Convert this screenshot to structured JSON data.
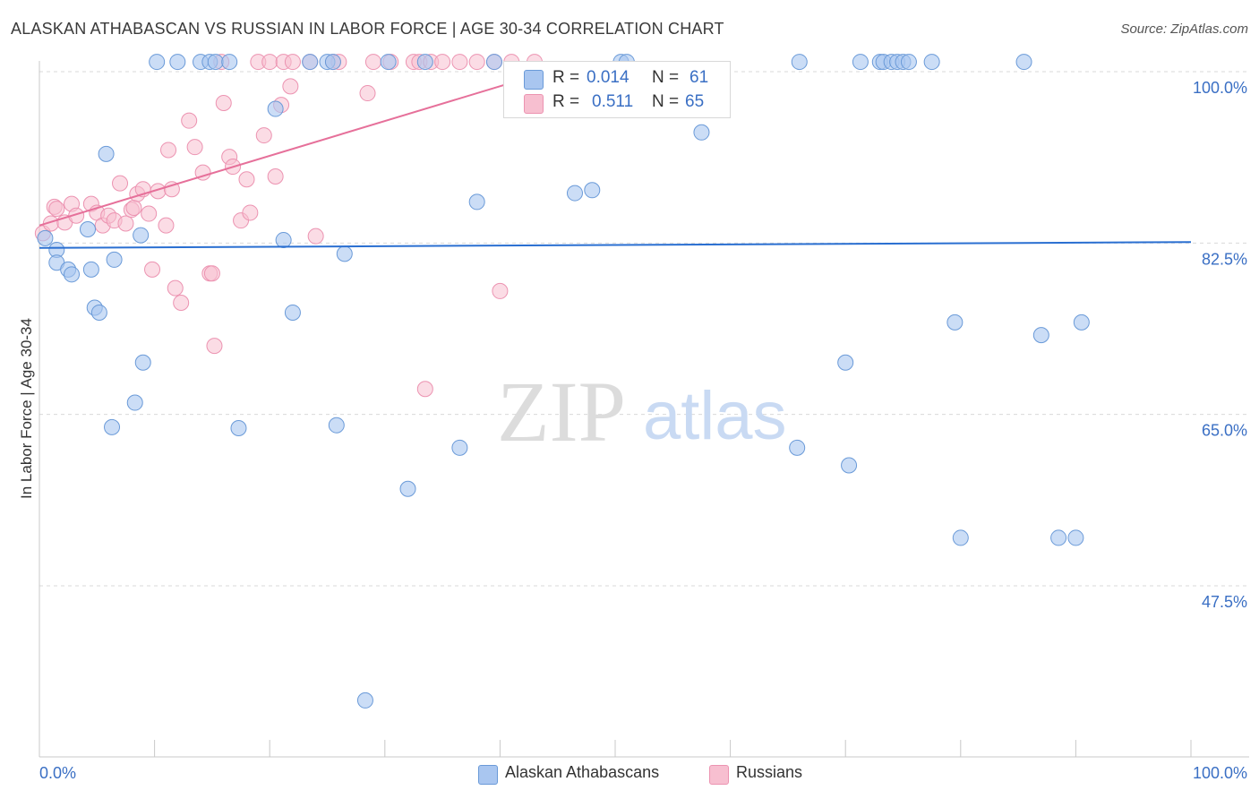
{
  "title": "ALASKAN ATHABASCAN VS RUSSIAN IN LABOR FORCE | AGE 30-34 CORRELATION CHART",
  "source": "Source: ZipAtlas.com",
  "watermark": {
    "zip": "ZIP",
    "atlas": "atlas"
  },
  "legend": {
    "series1": {
      "r_label": "R =",
      "r_value": "0.014",
      "n_label": "N =",
      "n_value": "61"
    },
    "series2": {
      "r_label": "R =",
      "r_value": "0.511",
      "n_label": "N =",
      "n_value": "65"
    }
  },
  "colors": {
    "blue_fill": "#a9c6f0",
    "blue_stroke": "#6a9ad8",
    "blue_line": "#2a6fd1",
    "pink_fill": "#f7bfd0",
    "pink_stroke": "#ec93b1",
    "pink_line": "#e6709a",
    "axis_text": "#3a6fc4",
    "grid": "#d9d9d9"
  },
  "chart_data": {
    "type": "scatter",
    "title": "ALASKAN ATHABASCAN VS RUSSIAN IN LABOR FORCE | AGE 30-34 CORRELATION CHART",
    "xlabel": "",
    "ylabel": "In Labor Force | Age 30-34",
    "x_tick_labels": [
      "0.0%",
      "100.0%"
    ],
    "y_tick_labels": [
      "100.0%",
      "82.5%",
      "65.0%",
      "47.5%"
    ],
    "y_ticks": [
      100,
      82.5,
      65,
      47.5
    ],
    "xlim": [
      0,
      100
    ],
    "ylim": [
      30,
      101.5
    ],
    "series": [
      {
        "name": "Alaskan Athabascans",
        "color": "blue",
        "trend": {
          "x": [
            0,
            100
          ],
          "y": [
            82.0,
            82.6
          ]
        },
        "points": [
          [
            0.5,
            83.0
          ],
          [
            1.5,
            81.8
          ],
          [
            1.5,
            80.5
          ],
          [
            2.5,
            79.8
          ],
          [
            2.8,
            79.3
          ],
          [
            4.2,
            83.9
          ],
          [
            4.5,
            79.8
          ],
          [
            4.8,
            75.9
          ],
          [
            5.2,
            75.4
          ],
          [
            5.8,
            91.6
          ],
          [
            6.3,
            63.7
          ],
          [
            6.5,
            80.8
          ],
          [
            8.3,
            66.2
          ],
          [
            8.8,
            83.3
          ],
          [
            9.0,
            70.3
          ],
          [
            10.2,
            101
          ],
          [
            12.0,
            101
          ],
          [
            14.0,
            101
          ],
          [
            14.8,
            101
          ],
          [
            15.3,
            101
          ],
          [
            16.5,
            101
          ],
          [
            17.3,
            63.6
          ],
          [
            20.5,
            96.2
          ],
          [
            21.2,
            82.8
          ],
          [
            22.0,
            75.4
          ],
          [
            23.5,
            101
          ],
          [
            25.0,
            101
          ],
          [
            25.5,
            101
          ],
          [
            25.8,
            63.9
          ],
          [
            26.5,
            81.4
          ],
          [
            28.3,
            35.8
          ],
          [
            30.3,
            101
          ],
          [
            32.0,
            57.4
          ],
          [
            33.5,
            101
          ],
          [
            36.5,
            61.6
          ],
          [
            38.0,
            86.7
          ],
          [
            39.5,
            101
          ],
          [
            46.5,
            87.6
          ],
          [
            48.0,
            87.9
          ],
          [
            50.5,
            101
          ],
          [
            51.0,
            101
          ],
          [
            57.5,
            93.8
          ],
          [
            65.8,
            61.6
          ],
          [
            66.0,
            101
          ],
          [
            70.0,
            70.3
          ],
          [
            70.3,
            59.8
          ],
          [
            71.3,
            101
          ],
          [
            73.0,
            101
          ],
          [
            73.3,
            101
          ],
          [
            74.0,
            101
          ],
          [
            74.5,
            101
          ],
          [
            75.0,
            101
          ],
          [
            75.5,
            101
          ],
          [
            77.5,
            101
          ],
          [
            79.5,
            74.4
          ],
          [
            80.0,
            52.4
          ],
          [
            85.5,
            101
          ],
          [
            87.0,
            73.1
          ],
          [
            88.5,
            52.4
          ],
          [
            90.0,
            52.4
          ],
          [
            90.5,
            74.4
          ]
        ]
      },
      {
        "name": "Russians",
        "color": "pink",
        "trend": {
          "x": [
            0,
            47
          ],
          "y": [
            84.3,
            101
          ]
        },
        "points": [
          [
            0.3,
            83.5
          ],
          [
            1.0,
            84.5
          ],
          [
            1.3,
            86.2
          ],
          [
            1.5,
            86.0
          ],
          [
            2.2,
            84.6
          ],
          [
            2.8,
            86.5
          ],
          [
            3.2,
            85.3
          ],
          [
            4.5,
            86.5
          ],
          [
            5.0,
            85.6
          ],
          [
            5.5,
            84.3
          ],
          [
            6.0,
            85.3
          ],
          [
            6.5,
            84.8
          ],
          [
            7.0,
            88.6
          ],
          [
            7.5,
            84.5
          ],
          [
            8.0,
            85.9
          ],
          [
            8.2,
            86.1
          ],
          [
            8.5,
            87.5
          ],
          [
            9.0,
            88.0
          ],
          [
            9.5,
            85.5
          ],
          [
            9.8,
            79.8
          ],
          [
            10.3,
            87.8
          ],
          [
            11.0,
            84.3
          ],
          [
            11.2,
            92.0
          ],
          [
            11.5,
            88.0
          ],
          [
            11.8,
            77.9
          ],
          [
            12.3,
            76.4
          ],
          [
            13.0,
            95.0
          ],
          [
            13.5,
            92.3
          ],
          [
            14.2,
            89.7
          ],
          [
            14.8,
            79.4
          ],
          [
            15.0,
            79.4
          ],
          [
            15.2,
            72.0
          ],
          [
            15.8,
            101
          ],
          [
            16.0,
            96.8
          ],
          [
            16.5,
            91.3
          ],
          [
            16.8,
            90.3
          ],
          [
            17.5,
            84.8
          ],
          [
            18.0,
            89.0
          ],
          [
            18.3,
            85.6
          ],
          [
            19.0,
            101
          ],
          [
            19.5,
            93.5
          ],
          [
            20.0,
            101
          ],
          [
            20.5,
            89.3
          ],
          [
            21.0,
            96.6
          ],
          [
            21.2,
            101
          ],
          [
            21.8,
            98.5
          ],
          [
            22.0,
            101
          ],
          [
            23.5,
            101
          ],
          [
            24.0,
            83.2
          ],
          [
            25.5,
            101
          ],
          [
            26.0,
            101
          ],
          [
            28.5,
            97.8
          ],
          [
            29.0,
            101
          ],
          [
            30.5,
            101
          ],
          [
            32.5,
            101
          ],
          [
            33.0,
            101
          ],
          [
            33.5,
            67.6
          ],
          [
            34.0,
            101
          ],
          [
            35.0,
            101
          ],
          [
            36.5,
            101
          ],
          [
            38.0,
            101
          ],
          [
            39.5,
            101
          ],
          [
            40.0,
            77.6
          ],
          [
            41.0,
            101
          ],
          [
            43.0,
            101
          ]
        ]
      }
    ]
  }
}
